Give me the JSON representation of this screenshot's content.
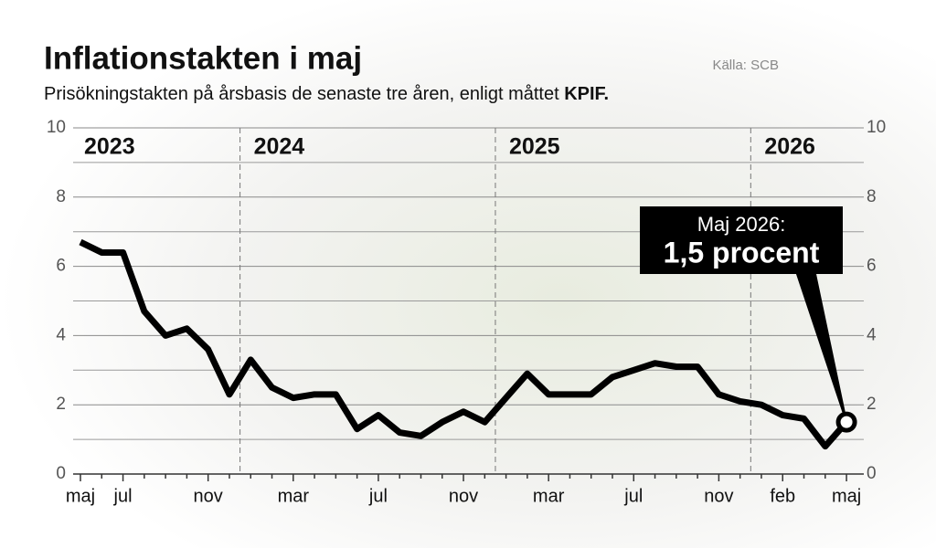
{
  "chart_data": {
    "type": "line",
    "title": "Inflationstakten i maj",
    "subtitle": "Prisökningstakten på årsbasis de senaste tre åren, enligt måttet",
    "subtitle_emphasis": "KPIF.",
    "source": "Källa: SCB",
    "year_labels": [
      "2023",
      "2024",
      "2025",
      "2026"
    ],
    "categories": [
      "maj",
      null,
      "jul",
      null,
      null,
      null,
      "nov",
      null,
      null,
      null,
      "mar",
      null,
      null,
      null,
      "jul",
      null,
      null,
      null,
      "nov",
      null,
      null,
      null,
      "mar",
      null,
      null,
      null,
      "jul",
      null,
      null,
      null,
      "nov",
      null,
      null,
      "feb",
      null,
      null,
      "maj"
    ],
    "series": [
      {
        "name": "KPIF",
        "color": "#000000",
        "values": [
          6.7,
          6.4,
          6.4,
          4.7,
          4.0,
          4.2,
          3.6,
          2.3,
          3.3,
          2.5,
          2.2,
          2.3,
          2.3,
          1.3,
          1.7,
          1.2,
          1.1,
          1.5,
          1.8,
          1.5,
          2.2,
          2.9,
          2.3,
          2.3,
          2.3,
          2.8,
          3.0,
          3.2,
          3.1,
          3.1,
          2.3,
          2.1,
          2.0,
          1.7,
          1.6,
          0.8,
          1.5
        ],
        "value_labels": [
          null,
          null,
          null,
          null,
          null,
          null,
          null,
          null,
          null,
          null,
          null,
          null,
          null,
          null,
          null,
          null,
          null,
          null,
          null,
          null,
          null,
          null,
          null,
          null,
          null,
          null,
          null,
          null,
          null,
          null,
          null,
          null,
          null,
          null,
          null,
          null,
          "1,5 procent"
        ]
      }
    ],
    "annotation": "Maj 2026:",
    "ylim": [
      0,
      10
    ],
    "yticks": [
      0,
      2,
      4,
      6,
      8,
      10
    ],
    "y2lim": [
      0,
      10
    ],
    "y2ticks": [
      0,
      2,
      4,
      6,
      8,
      10
    ],
    "grid": true
  }
}
